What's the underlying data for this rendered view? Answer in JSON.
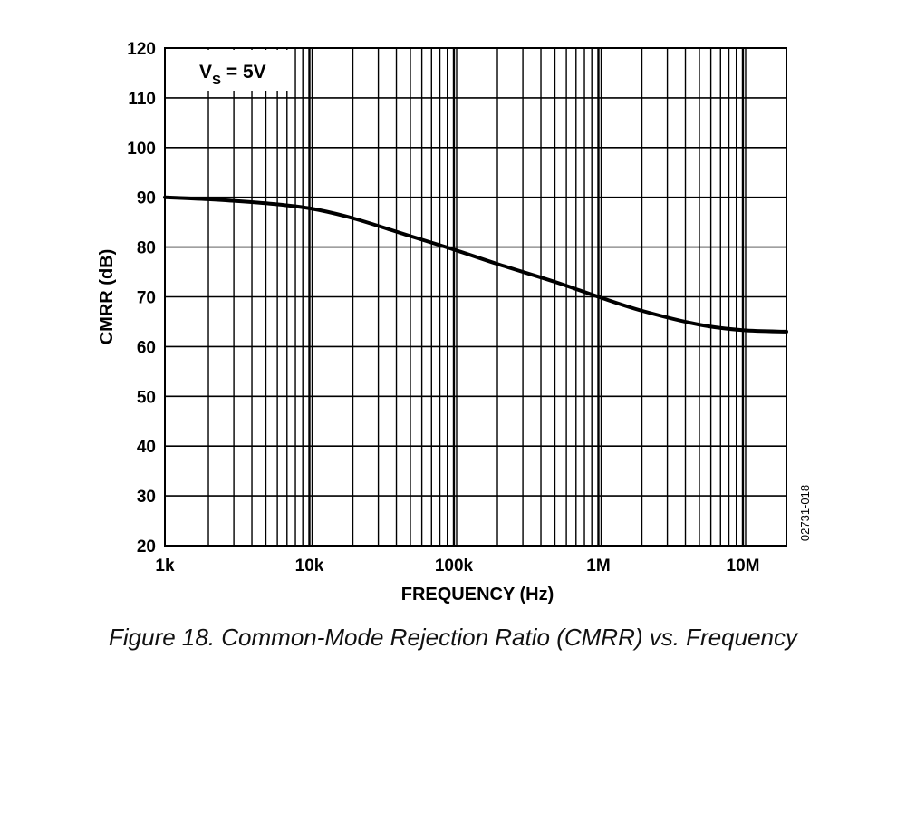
{
  "caption": "Figure 18. Common-Mode Rejection Ratio (CMRR) vs. Frequency",
  "figure_code": "02731-018",
  "chart_data": {
    "type": "line",
    "xlabel": "FREQUENCY (Hz)",
    "ylabel": "CMRR (dB)",
    "x_scale": "log",
    "xlim": [
      1000,
      20000000
    ],
    "ylim": [
      20,
      120
    ],
    "x_ticks": [
      {
        "value": 1000,
        "label": "1k"
      },
      {
        "value": 10000,
        "label": "10k"
      },
      {
        "value": 100000,
        "label": "100k"
      },
      {
        "value": 1000000,
        "label": "1M"
      },
      {
        "value": 10000000,
        "label": "10M"
      }
    ],
    "y_ticks": [
      20,
      30,
      40,
      50,
      60,
      70,
      80,
      90,
      100,
      110,
      120
    ],
    "grid": true,
    "annotation": {
      "main": "V",
      "sub": "S",
      "rest": " = 5V"
    },
    "series": [
      {
        "color": "#000000",
        "x": [
          1000,
          2000,
          5000,
          10000,
          20000,
          50000,
          100000,
          200000,
          500000,
          1000000,
          2000000,
          5000000,
          10000000,
          20000000
        ],
        "y": [
          90,
          89.6,
          88.8,
          87.8,
          85.8,
          82.2,
          79.5,
          76.6,
          73,
          70,
          67.2,
          64.4,
          63.3,
          63
        ]
      }
    ]
  }
}
